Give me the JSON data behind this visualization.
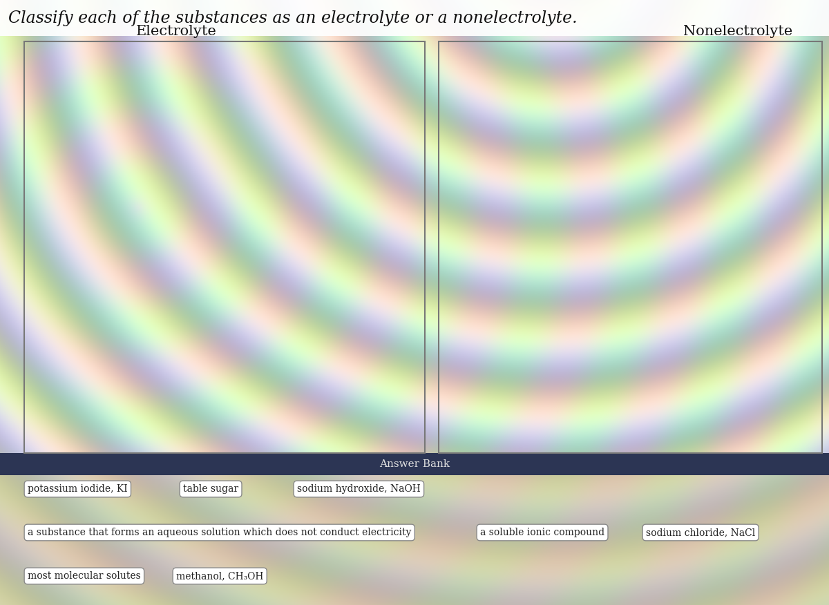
{
  "title": "Classify each of the substances as an electrolyte or a nonelectrolyte.",
  "title_fontsize": 17,
  "electrolyte_label": "Electrolyte",
  "nonelectrolyte_label": "Nonelectrolyte",
  "answer_bank_label": "Answer Bank",
  "answer_bank_bg": "#2c3554",
  "answer_bank_text_color": "#e0e0e0",
  "box_bg": "white",
  "box_edge_color": "#777777",
  "box_text_color": "#222222",
  "answer_items_row1": [
    "potassium iodide, KI",
    "table sugar",
    "sodium hydroxide, NaOH"
  ],
  "answer_items_row2": [
    "a substance that forms an aqueous solution which does not conduct electricity",
    "a soluble ionic compound",
    "sodium chloride, NaCl"
  ],
  "answer_items_row3": [
    "most molecular solutes",
    "methanol, CH₃OH"
  ],
  "drop_zone_border": "#888888",
  "fig_width": 12.0,
  "fig_height": 8.76
}
